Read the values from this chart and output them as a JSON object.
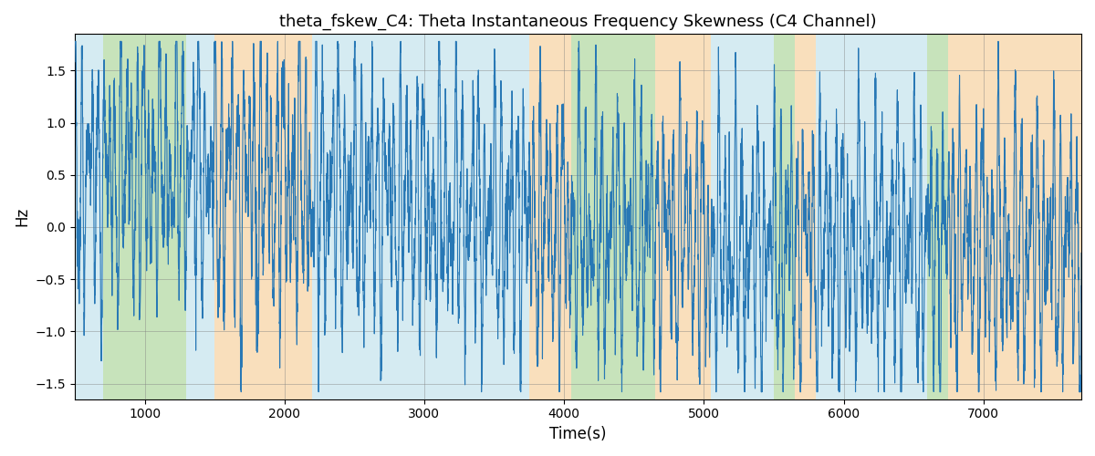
{
  "title": "theta_fskew_C4: Theta Instantaneous Frequency Skewness (C4 Channel)",
  "xlabel": "Time(s)",
  "ylabel": "Hz",
  "xlim": [
    500,
    7700
  ],
  "ylim": [
    -1.65,
    1.85
  ],
  "line_color": "#2878b5",
  "line_width": 0.8,
  "grid": true,
  "background_regions": [
    {
      "xmin": 500,
      "xmax": 700,
      "color": "#add8e6",
      "alpha": 0.5
    },
    {
      "xmin": 700,
      "xmax": 1300,
      "color": "#90c878",
      "alpha": 0.5
    },
    {
      "xmin": 1300,
      "xmax": 1500,
      "color": "#add8e6",
      "alpha": 0.5
    },
    {
      "xmin": 1500,
      "xmax": 2200,
      "color": "#f4c07a",
      "alpha": 0.5
    },
    {
      "xmin": 2200,
      "xmax": 3750,
      "color": "#add8e6",
      "alpha": 0.5
    },
    {
      "xmin": 3750,
      "xmax": 4050,
      "color": "#f4c07a",
      "alpha": 0.5
    },
    {
      "xmin": 4050,
      "xmax": 4650,
      "color": "#90c878",
      "alpha": 0.5
    },
    {
      "xmin": 4650,
      "xmax": 5050,
      "color": "#f4c07a",
      "alpha": 0.5
    },
    {
      "xmin": 5050,
      "xmax": 5500,
      "color": "#add8e6",
      "alpha": 0.5
    },
    {
      "xmin": 5500,
      "xmax": 5650,
      "color": "#90c878",
      "alpha": 0.5
    },
    {
      "xmin": 5650,
      "xmax": 5800,
      "color": "#f4c07a",
      "alpha": 0.5
    },
    {
      "xmin": 5800,
      "xmax": 6600,
      "color": "#add8e6",
      "alpha": 0.5
    },
    {
      "xmin": 6600,
      "xmax": 6750,
      "color": "#90c878",
      "alpha": 0.5
    },
    {
      "xmin": 6750,
      "xmax": 7700,
      "color": "#f4c07a",
      "alpha": 0.5
    }
  ],
  "t_start": 500,
  "t_end": 7700,
  "n_points": 7200,
  "figsize": [
    12.0,
    5.0
  ],
  "dpi": 100
}
